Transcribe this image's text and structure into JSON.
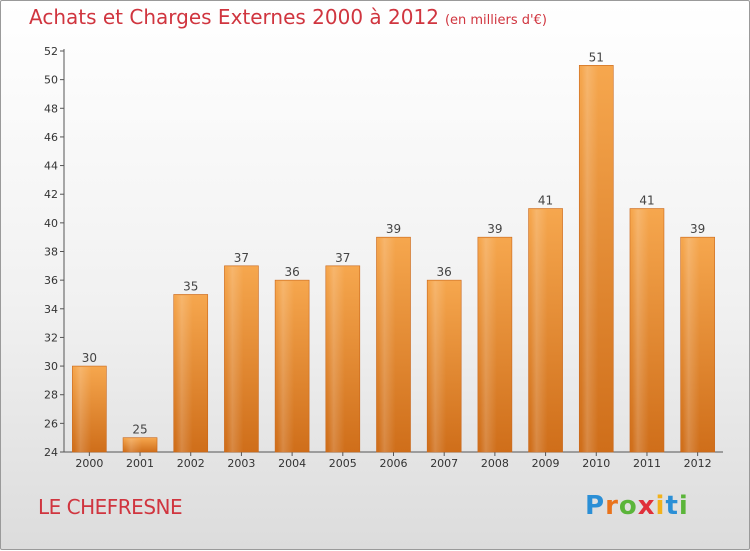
{
  "header": {
    "title": "Achats et Charges Externes 2000 à 2012",
    "unit": "(en milliers d'€)"
  },
  "footer": {
    "commune": "LE CHEFRESNE",
    "logo_letters": [
      "P",
      "r",
      "o",
      "x",
      "i",
      "t",
      "i"
    ],
    "logo_colors": [
      "#2b8fd6",
      "#e9731c",
      "#5bb53a",
      "#e0303a",
      "#f2b21b",
      "#2b8fd6",
      "#5bb53a"
    ]
  },
  "colors": {
    "bar_light": "#f6a74e",
    "bar_dark": "#cf6e1a",
    "title": "#d0353f"
  },
  "chart_data": {
    "type": "bar",
    "title": "Achats et Charges Externes 2000 à 2012",
    "subtitle": "(en milliers d'€)",
    "xlabel": "",
    "ylabel": "",
    "categories": [
      "2000",
      "2001",
      "2002",
      "2003",
      "2004",
      "2005",
      "2006",
      "2007",
      "2008",
      "2009",
      "2010",
      "2011",
      "2012"
    ],
    "values": [
      30,
      25,
      35,
      37,
      36,
      37,
      39,
      36,
      39,
      41,
      51,
      41,
      39
    ],
    "ylim": [
      24,
      52
    ],
    "yticks": [
      24,
      26,
      28,
      30,
      32,
      34,
      36,
      38,
      40,
      42,
      44,
      46,
      48,
      50,
      52
    ],
    "grid": false,
    "data_labels": true
  }
}
